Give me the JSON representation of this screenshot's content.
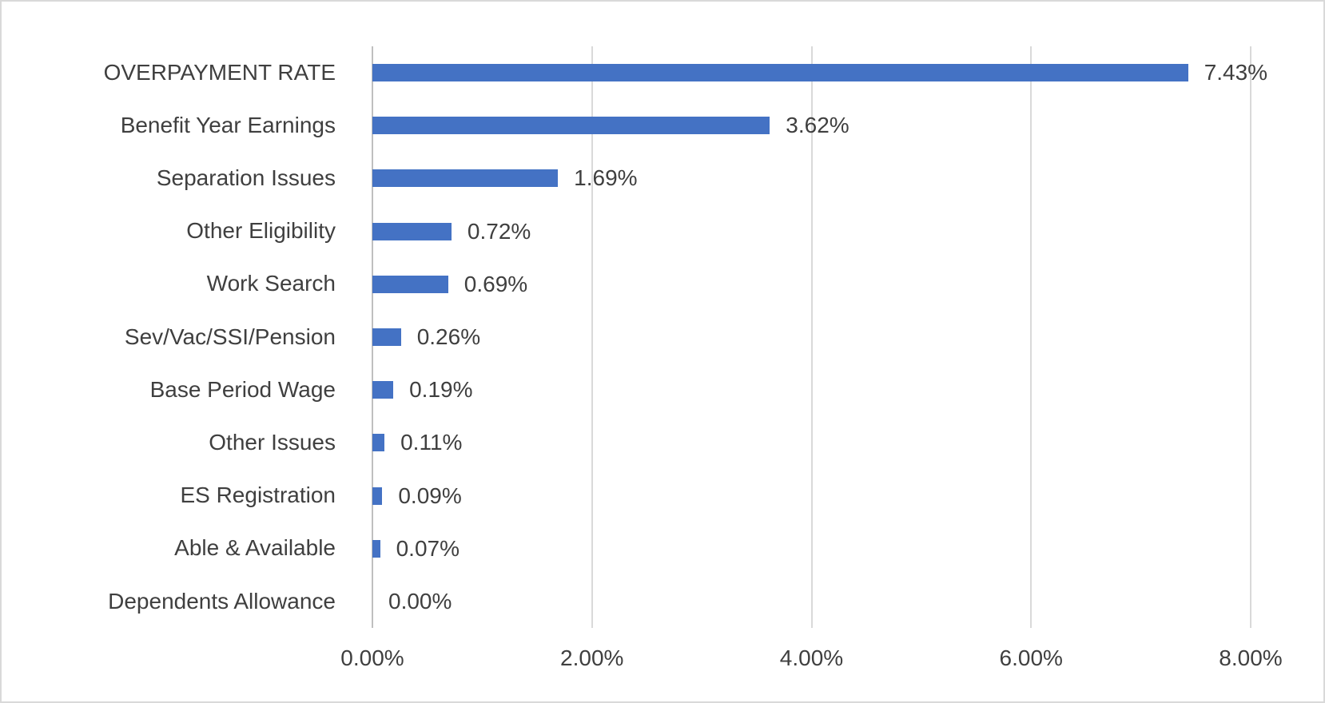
{
  "chart_data": {
    "type": "bar",
    "orientation": "horizontal",
    "title": "",
    "xlabel": "",
    "ylabel": "",
    "categories": [
      "OVERPAYMENT RATE",
      "Benefit Year Earnings",
      "Separation Issues",
      "Other Eligibility",
      "Work Search",
      "Sev/Vac/SSI/Pension",
      "Base Period Wage",
      "Other Issues",
      "ES Registration",
      "Able & Available",
      "Dependents Allowance"
    ],
    "values": [
      7.43,
      3.62,
      1.69,
      0.72,
      0.69,
      0.26,
      0.19,
      0.11,
      0.09,
      0.07,
      0.0
    ],
    "value_labels": [
      "7.43%",
      "3.62%",
      "1.69%",
      "0.72%",
      "0.69%",
      "0.26%",
      "0.19%",
      "0.11%",
      "0.09%",
      "0.07%",
      "0.00%"
    ],
    "xlim": [
      0,
      8
    ],
    "x_ticks": [
      {
        "value": 0,
        "label": "0.00%"
      },
      {
        "value": 2,
        "label": "2.00%"
      },
      {
        "value": 4,
        "label": "4.00%"
      },
      {
        "value": 6,
        "label": "6.00%"
      },
      {
        "value": 8,
        "label": "8.00%"
      }
    ],
    "grid": true,
    "legend": "none",
    "data_labels": "outside-end",
    "colors": {
      "bar": "#4472C4",
      "text": "#3F3F3F",
      "gridline": "#D9D9D9",
      "axis_line": "#BFBFBF",
      "frame_border": "#D9D9D9",
      "background": "#FFFFFF"
    }
  }
}
